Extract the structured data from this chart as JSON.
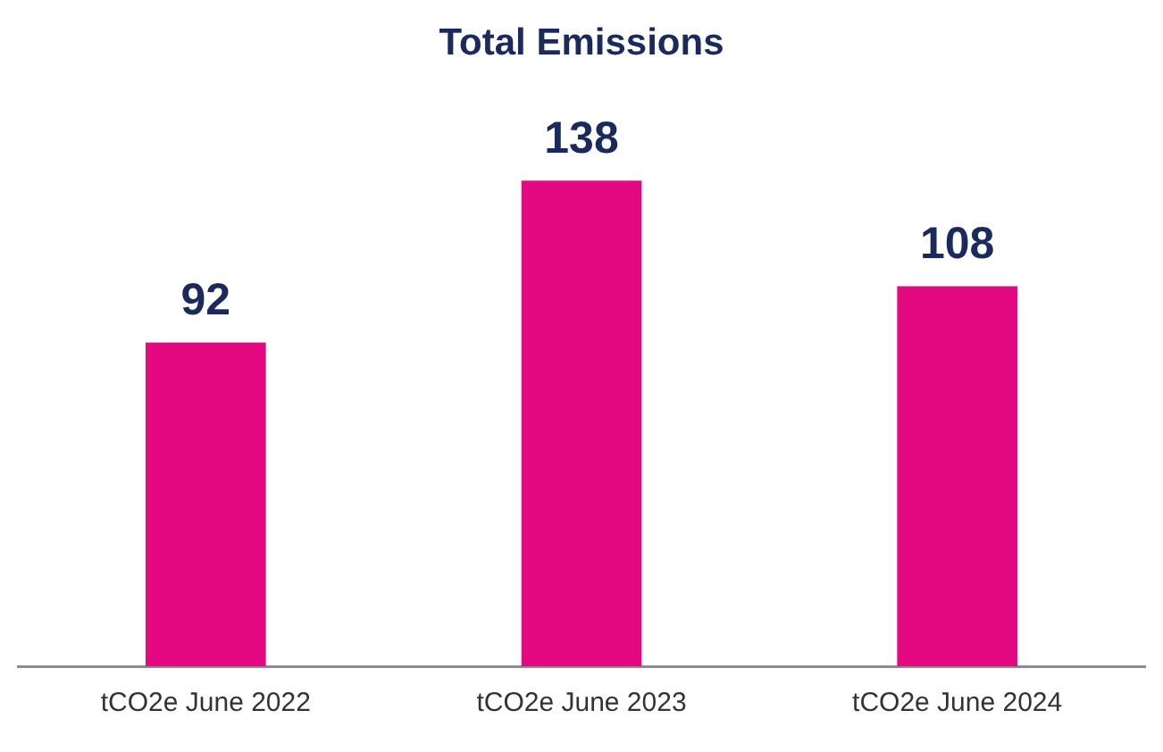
{
  "chart_data": {
    "type": "bar",
    "title": "Total Emissions",
    "categories": [
      "tCO2e June 2022",
      "tCO2e June 2023",
      "tCO2e June 2024"
    ],
    "values": [
      92,
      138,
      108
    ],
    "color": "#e5097f",
    "data_labels": true,
    "grid": false,
    "legend": false
  }
}
